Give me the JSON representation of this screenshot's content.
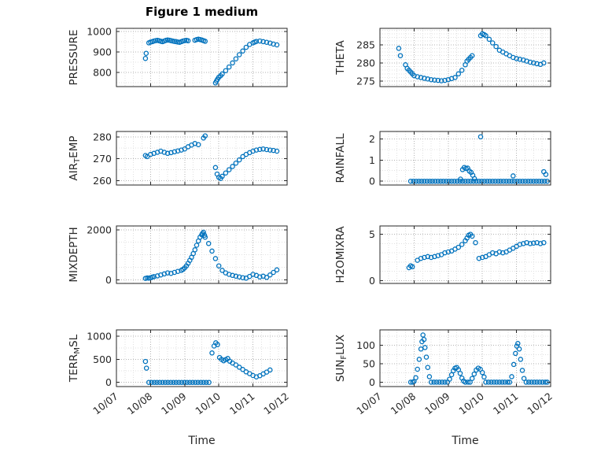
{
  "figure": {
    "title": "Figure 1 medium",
    "xlabel": "Time",
    "marker_color": "#0072BD",
    "x_tick_labels": [
      "10/07",
      "10/08",
      "10/09",
      "10/10",
      "10/11",
      "10/12"
    ]
  },
  "chart_data": [
    {
      "type": "scatter",
      "name": "pressure",
      "marker": "o",
      "ylabel": "PRESSURE",
      "ylabel_parts": {
        "pre": "PRESSURE",
        "sub": "",
        "post": ""
      },
      "xlim": [
        0,
        5
      ],
      "xticks": [
        0,
        1,
        2,
        3,
        4,
        5
      ],
      "xminor_step": 0.25,
      "ylim": [
        730,
        1015
      ],
      "yticks": [
        800,
        900,
        1000
      ],
      "yminor_step": 50,
      "x": [
        0.85,
        0.87,
        0.95,
        1.0,
        1.05,
        1.1,
        1.15,
        1.2,
        1.25,
        1.3,
        1.35,
        1.4,
        1.45,
        1.5,
        1.55,
        1.6,
        1.65,
        1.7,
        1.75,
        1.8,
        1.85,
        1.9,
        1.95,
        2.0,
        2.05,
        2.1,
        2.3,
        2.35,
        2.4,
        2.45,
        2.5,
        2.55,
        2.6,
        2.9,
        2.93,
        2.96,
        3.0,
        3.05,
        3.1,
        3.2,
        3.3,
        3.4,
        3.5,
        3.6,
        3.7,
        3.8,
        3.9,
        4.0,
        4.05,
        4.1,
        4.2,
        4.3,
        4.4,
        4.5,
        4.6,
        4.7
      ],
      "y": [
        868,
        893,
        944,
        948,
        950,
        953,
        955,
        956,
        954,
        952,
        950,
        953,
        956,
        958,
        957,
        955,
        953,
        951,
        950,
        948,
        947,
        950,
        953,
        955,
        956,
        954,
        957,
        960,
        962,
        960,
        958,
        955,
        952,
        748,
        757,
        766,
        776,
        783,
        792,
        808,
        826,
        846,
        866,
        886,
        904,
        922,
        936,
        944,
        948,
        951,
        953,
        950,
        947,
        943,
        938,
        934
      ]
    },
    {
      "type": "scatter",
      "name": "theta",
      "marker": "o",
      "ylabel": "THETA",
      "ylabel_parts": {
        "pre": "THETA",
        "sub": "",
        "post": ""
      },
      "xlim": [
        0,
        5
      ],
      "xticks": [
        0,
        1,
        2,
        3,
        4,
        5
      ],
      "xminor_step": 0.25,
      "ylim": [
        273.5,
        289.5
      ],
      "yticks": [
        275,
        280,
        285
      ],
      "yminor_step": 1,
      "x": [
        0.55,
        0.6,
        0.75,
        0.8,
        0.85,
        0.9,
        0.95,
        1.0,
        1.1,
        1.2,
        1.3,
        1.4,
        1.5,
        1.6,
        1.7,
        1.8,
        1.9,
        2.0,
        2.1,
        2.2,
        2.3,
        2.4,
        2.5,
        2.55,
        2.6,
        2.65,
        2.7,
        2.95,
        3.0,
        3.05,
        3.1,
        3.2,
        3.3,
        3.4,
        3.5,
        3.6,
        3.7,
        3.8,
        3.9,
        4.0,
        4.1,
        4.2,
        4.3,
        4.4,
        4.5,
        4.6,
        4.7,
        4.8
      ],
      "y": [
        284,
        282,
        279.5,
        278.5,
        278,
        277.5,
        277,
        276.5,
        276.2,
        276,
        275.8,
        275.6,
        275.4,
        275.3,
        275.2,
        275.1,
        275.2,
        275.4,
        275.7,
        276,
        277,
        278,
        279.5,
        280.5,
        281,
        281.5,
        282,
        287.5,
        288,
        287.8,
        287.5,
        286.5,
        285.5,
        284.5,
        283.5,
        283,
        282.5,
        282,
        281.5,
        281.2,
        281,
        280.8,
        280.5,
        280.2,
        280,
        279.8,
        279.6,
        280
      ]
    },
    {
      "type": "scatter",
      "name": "airtemp",
      "marker": "o",
      "ylabel": "AIRTEMP",
      "ylabel_parts": {
        "pre": "AIR",
        "sub": "T",
        "post": "EMP"
      },
      "xlim": [
        0,
        5
      ],
      "xticks": [
        0,
        1,
        2,
        3,
        4,
        5
      ],
      "xminor_step": 0.25,
      "ylim": [
        258,
        282.5
      ],
      "yticks": [
        260,
        270,
        280
      ],
      "yminor_step": 5,
      "x": [
        0.85,
        0.9,
        1.0,
        1.1,
        1.2,
        1.3,
        1.4,
        1.5,
        1.6,
        1.7,
        1.8,
        1.9,
        2.0,
        2.1,
        2.2,
        2.3,
        2.4,
        2.55,
        2.6,
        2.9,
        2.95,
        3.0,
        3.05,
        3.1,
        3.2,
        3.3,
        3.4,
        3.5,
        3.6,
        3.7,
        3.8,
        3.9,
        4.0,
        4.1,
        4.2,
        4.3,
        4.4,
        4.5,
        4.6,
        4.7
      ],
      "y": [
        271.5,
        271,
        272,
        272.5,
        273,
        273.5,
        273,
        272.5,
        272.8,
        273.2,
        273.6,
        274,
        274.5,
        275.5,
        276.3,
        277,
        276.5,
        279.5,
        280.5,
        266,
        263,
        261.5,
        261,
        262,
        263.5,
        265,
        266.5,
        268,
        269.5,
        271,
        272,
        272.8,
        273.5,
        274,
        274.3,
        274.5,
        274.2,
        274,
        273.8,
        273.5
      ]
    },
    {
      "type": "scatter",
      "name": "rainfall",
      "marker": "o",
      "ylabel": "RAINFALL",
      "ylabel_parts": {
        "pre": "RAINFALL",
        "sub": "",
        "post": ""
      },
      "xlim": [
        0,
        5
      ],
      "xticks": [
        0,
        1,
        2,
        3,
        4,
        5
      ],
      "xminor_step": 0.25,
      "ylim": [
        -0.18,
        2.35
      ],
      "yticks": [
        0,
        1,
        2
      ],
      "yminor_step": 0.5,
      "x": [
        0.9,
        0.98,
        1.06,
        1.14,
        1.22,
        1.3,
        1.38,
        1.46,
        1.54,
        1.62,
        1.7,
        1.78,
        1.86,
        1.94,
        2.02,
        2.1,
        2.18,
        2.26,
        2.34,
        2.42,
        2.5,
        2.58,
        2.66,
        2.74,
        2.82,
        2.9,
        2.98,
        3.06,
        3.14,
        3.22,
        3.3,
        3.38,
        3.46,
        3.54,
        3.62,
        3.7,
        3.78,
        3.86,
        3.94,
        4.02,
        4.1,
        4.18,
        4.26,
        4.34,
        4.42,
        4.5,
        4.58,
        4.66,
        4.74,
        4.82,
        4.9,
        2.36,
        2.42,
        2.47,
        2.52,
        2.57,
        2.62,
        2.67,
        2.72,
        2.77,
        2.95,
        3.9,
        4.8,
        4.86
      ],
      "y": [
        0,
        0,
        0,
        0,
        0,
        0,
        0,
        0,
        0,
        0,
        0,
        0,
        0,
        0,
        0,
        0,
        0,
        0,
        0,
        0,
        0,
        0,
        0,
        0,
        0,
        0,
        0,
        0,
        0,
        0,
        0,
        0,
        0,
        0,
        0,
        0,
        0,
        0,
        0,
        0,
        0,
        0,
        0,
        0,
        0,
        0,
        0,
        0,
        0,
        0,
        0,
        0.1,
        0.55,
        0.65,
        0.6,
        0.62,
        0.48,
        0.42,
        0.28,
        0.12,
        2.1,
        0.25,
        0.45,
        0.32
      ]
    },
    {
      "type": "scatter",
      "name": "mixdepth",
      "marker": "o",
      "ylabel": "MIXDEPTH",
      "ylabel_parts": {
        "pre": "MIXDEPTH",
        "sub": "",
        "post": ""
      },
      "xlim": [
        0,
        5
      ],
      "xticks": [
        0,
        1,
        2,
        3,
        4,
        5
      ],
      "xminor_step": 0.25,
      "ylim": [
        -140,
        2150
      ],
      "yticks": [
        0,
        2000
      ],
      "yminor_step": 500,
      "x": [
        0.85,
        0.9,
        0.95,
        1.0,
        1.05,
        1.1,
        1.2,
        1.3,
        1.4,
        1.5,
        1.6,
        1.7,
        1.8,
        1.9,
        1.95,
        2.0,
        2.05,
        2.1,
        2.15,
        2.2,
        2.25,
        2.3,
        2.35,
        2.4,
        2.45,
        2.5,
        2.52,
        2.55,
        2.58,
        2.6,
        2.7,
        2.8,
        2.9,
        3.0,
        3.1,
        3.2,
        3.3,
        3.4,
        3.5,
        3.6,
        3.7,
        3.8,
        3.9,
        4.0,
        4.1,
        4.2,
        4.3,
        4.4,
        4.5,
        4.6,
        4.7
      ],
      "y": [
        60,
        80,
        70,
        90,
        110,
        130,
        160,
        200,
        240,
        280,
        260,
        300,
        340,
        380,
        420,
        480,
        560,
        660,
        780,
        900,
        1050,
        1200,
        1380,
        1550,
        1700,
        1800,
        1850,
        1900,
        1780,
        1700,
        1450,
        1150,
        850,
        560,
        380,
        280,
        220,
        180,
        150,
        120,
        90,
        70,
        140,
        220,
        180,
        120,
        150,
        100,
        200,
        300,
        400
      ]
    },
    {
      "type": "scatter",
      "name": "h2omixra",
      "marker": "o",
      "ylabel": "H2OMIXRA",
      "ylabel_parts": {
        "pre": "H2OMIXRA",
        "sub": "",
        "post": ""
      },
      "xlim": [
        0,
        5
      ],
      "xticks": [
        0,
        1,
        2,
        3,
        4,
        5
      ],
      "xminor_step": 0.25,
      "ylim": [
        -0.3,
        5.9
      ],
      "yticks": [
        0,
        5
      ],
      "yminor_step": 1,
      "x": [
        0.85,
        0.9,
        0.95,
        1.1,
        1.2,
        1.3,
        1.4,
        1.5,
        1.6,
        1.7,
        1.8,
        1.9,
        2.0,
        2.1,
        2.2,
        2.3,
        2.4,
        2.5,
        2.55,
        2.6,
        2.65,
        2.7,
        2.8,
        2.9,
        3.0,
        3.1,
        3.2,
        3.3,
        3.4,
        3.5,
        3.6,
        3.7,
        3.8,
        3.9,
        4.0,
        4.1,
        4.2,
        4.3,
        4.4,
        4.5,
        4.6,
        4.7,
        4.8
      ],
      "y": [
        1.4,
        1.6,
        1.5,
        2.2,
        2.4,
        2.5,
        2.6,
        2.5,
        2.6,
        2.7,
        2.8,
        3.0,
        3.1,
        3.2,
        3.4,
        3.6,
        3.9,
        4.3,
        4.6,
        4.9,
        5.0,
        4.8,
        4.1,
        2.4,
        2.5,
        2.6,
        2.8,
        3.0,
        2.9,
        3.1,
        3.0,
        3.1,
        3.3,
        3.5,
        3.7,
        3.9,
        4.0,
        4.1,
        4.0,
        4.05,
        4.1,
        4.0,
        4.1
      ]
    },
    {
      "type": "scatter",
      "name": "terrmsl",
      "marker": "o",
      "ylabel": "TERRMSL",
      "ylabel_parts": {
        "pre": "TERR",
        "sub": "M",
        "post": "SL"
      },
      "xlim": [
        0,
        5
      ],
      "xticks": [
        0,
        1,
        2,
        3,
        4,
        5
      ],
      "xminor_step": 0.25,
      "ylim": [
        -90,
        1140
      ],
      "yticks": [
        0,
        500,
        1000
      ],
      "yminor_step": 250,
      "x": [
        0.85,
        0.88,
        0.95,
        1.03,
        1.11,
        1.19,
        1.27,
        1.35,
        1.43,
        1.51,
        1.59,
        1.67,
        1.75,
        1.83,
        1.91,
        1.99,
        2.07,
        2.15,
        2.23,
        2.31,
        2.39,
        2.47,
        2.55,
        2.63,
        2.71,
        2.8,
        2.86,
        2.91,
        2.96,
        3.02,
        3.08,
        3.14,
        3.2,
        3.26,
        3.32,
        3.4,
        3.5,
        3.6,
        3.7,
        3.8,
        3.9,
        4.0,
        4.1,
        4.2,
        4.3,
        4.4,
        4.5
      ],
      "y": [
        455,
        310,
        0,
        0,
        0,
        0,
        0,
        0,
        0,
        0,
        0,
        0,
        0,
        0,
        0,
        0,
        0,
        0,
        0,
        0,
        0,
        0,
        0,
        0,
        0,
        640,
        790,
        860,
        820,
        540,
        500,
        470,
        495,
        520,
        460,
        420,
        380,
        330,
        280,
        230,
        190,
        150,
        120,
        145,
        185,
        225,
        270
      ]
    },
    {
      "type": "scatter",
      "name": "sunflux",
      "marker": "o",
      "ylabel": "SUNFLUX",
      "ylabel_parts": {
        "pre": "SUN",
        "sub": "F",
        "post": "LUX"
      },
      "xlim": [
        0,
        5
      ],
      "xticks": [
        0,
        1,
        2,
        3,
        4,
        5
      ],
      "xminor_step": 0.25,
      "ylim": [
        -12,
        142
      ],
      "yticks": [
        0,
        50,
        100
      ],
      "yminor_step": 25,
      "x": [
        0.9,
        0.96,
        1.0,
        1.05,
        1.1,
        1.15,
        1.2,
        1.23,
        1.26,
        1.29,
        1.32,
        1.36,
        1.4,
        1.45,
        1.5,
        1.58,
        1.66,
        1.74,
        1.82,
        1.9,
        1.98,
        2.04,
        2.1,
        2.15,
        2.2,
        2.25,
        2.3,
        2.35,
        2.4,
        2.45,
        2.5,
        2.58,
        2.64,
        2.7,
        2.76,
        2.82,
        2.88,
        2.94,
        3.0,
        3.05,
        3.1,
        3.18,
        3.26,
        3.34,
        3.42,
        3.5,
        3.58,
        3.66,
        3.74,
        3.8,
        3.86,
        3.92,
        3.97,
        4.01,
        4.04,
        4.08,
        4.12,
        4.17,
        4.22,
        4.28,
        4.36,
        4.44,
        4.52,
        4.6,
        4.68,
        4.76,
        4.84,
        4.9
      ],
      "y": [
        0,
        0,
        2,
        12,
        35,
        62,
        90,
        110,
        128,
        116,
        94,
        68,
        40,
        15,
        0,
        0,
        0,
        0,
        0,
        0,
        0,
        8,
        20,
        31,
        38,
        40,
        34,
        24,
        11,
        3,
        0,
        0,
        0,
        10,
        22,
        33,
        38,
        35,
        26,
        14,
        0,
        0,
        0,
        0,
        0,
        0,
        0,
        0,
        0,
        0,
        15,
        48,
        78,
        98,
        105,
        90,
        62,
        32,
        10,
        0,
        0,
        0,
        0,
        0,
        0,
        0,
        0,
        0
      ]
    }
  ]
}
